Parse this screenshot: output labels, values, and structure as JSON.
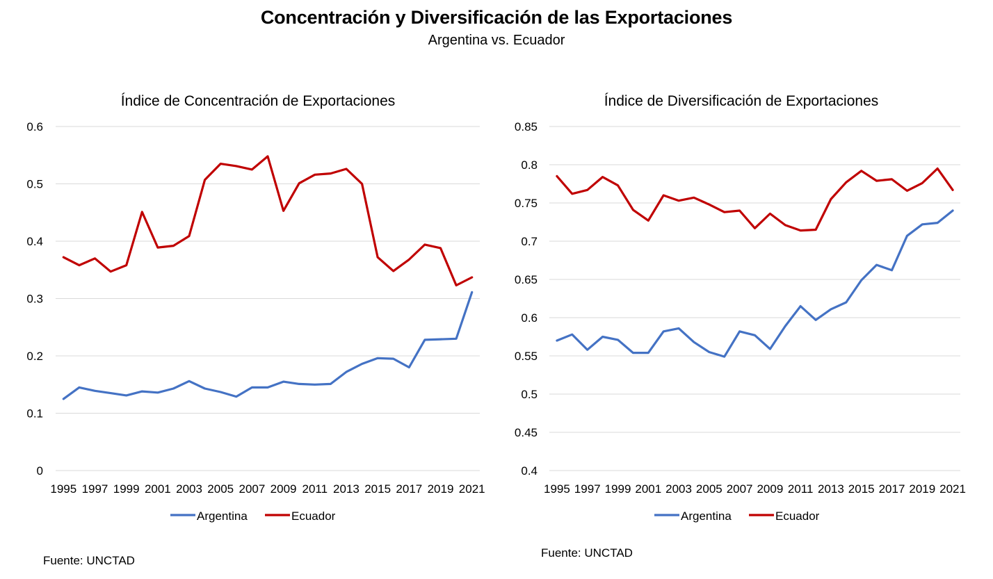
{
  "title": "Concentración y Diversificación de las Exportaciones",
  "subtitle": "Argentina vs. Ecuador",
  "colors": {
    "argentina": "#4472c4",
    "ecuador": "#c00000",
    "grid": "#d9d9d9"
  },
  "chart_data": [
    {
      "type": "line",
      "title": "Índice de Concentración de Exportaciones",
      "xlabel": "",
      "ylabel": "",
      "x": [
        1995,
        1996,
        1997,
        1998,
        1999,
        2000,
        2001,
        2002,
        2003,
        2004,
        2005,
        2006,
        2007,
        2008,
        2009,
        2010,
        2011,
        2012,
        2013,
        2014,
        2015,
        2016,
        2017,
        2018,
        2019,
        2020,
        2021
      ],
      "xtick_labels": [
        "1995",
        "1997",
        "1999",
        "2001",
        "2003",
        "2005",
        "2007",
        "2009",
        "2011",
        "2013",
        "2015",
        "2017",
        "2019",
        "2021"
      ],
      "ylim": [
        0,
        0.6
      ],
      "yticks": [
        0,
        0.1,
        0.2,
        0.3,
        0.4,
        0.5,
        0.6
      ],
      "ytick_labels": [
        "0",
        "0.1",
        "0.2",
        "0.3",
        "0.4",
        "0.5",
        "0.6"
      ],
      "grid": true,
      "legend_position": "bottom",
      "series": [
        {
          "name": "Argentina",
          "color": "#4472c4",
          "values": [
            0.125,
            0.145,
            0.139,
            0.135,
            0.131,
            0.138,
            0.136,
            0.143,
            0.156,
            0.143,
            0.137,
            0.129,
            0.145,
            0.145,
            0.155,
            0.151,
            0.15,
            0.151,
            0.172,
            0.186,
            0.196,
            0.195,
            0.18,
            0.228,
            0.229,
            0.23,
            0.311
          ]
        },
        {
          "name": "Ecuador",
          "color": "#c00000",
          "values": [
            0.372,
            0.358,
            0.37,
            0.347,
            0.358,
            0.451,
            0.389,
            0.392,
            0.409,
            0.507,
            0.535,
            0.531,
            0.525,
            0.548,
            0.453,
            0.501,
            0.516,
            0.518,
            0.526,
            0.5,
            0.372,
            0.348,
            0.368,
            0.394,
            0.388,
            0.323,
            0.337
          ]
        }
      ],
      "source": "Fuente: UNCTAD"
    },
    {
      "type": "line",
      "title": "Índice de Diversificación de Exportaciones",
      "xlabel": "",
      "ylabel": "",
      "x": [
        1995,
        1996,
        1997,
        1998,
        1999,
        2000,
        2001,
        2002,
        2003,
        2004,
        2005,
        2006,
        2007,
        2008,
        2009,
        2010,
        2011,
        2012,
        2013,
        2014,
        2015,
        2016,
        2017,
        2018,
        2019,
        2020,
        2021
      ],
      "xtick_labels": [
        "1995",
        "1997",
        "1999",
        "2001",
        "2003",
        "2005",
        "2007",
        "2009",
        "2011",
        "2013",
        "2015",
        "2017",
        "2019",
        "2021"
      ],
      "ylim": [
        0.4,
        0.85
      ],
      "yticks": [
        0.4,
        0.45,
        0.5,
        0.55,
        0.6,
        0.65,
        0.7,
        0.75,
        0.8,
        0.85
      ],
      "ytick_labels": [
        "0.4",
        "0.45",
        "0.5",
        "0.55",
        "0.6",
        "0.65",
        "0.7",
        "0.75",
        "0.8",
        "0.85"
      ],
      "grid": true,
      "legend_position": "bottom",
      "series": [
        {
          "name": "Argentina",
          "color": "#4472c4",
          "values": [
            0.57,
            0.578,
            0.558,
            0.575,
            0.571,
            0.554,
            0.554,
            0.582,
            0.586,
            0.568,
            0.555,
            0.549,
            0.582,
            0.577,
            0.559,
            0.589,
            0.615,
            0.597,
            0.611,
            0.62,
            0.649,
            0.669,
            0.662,
            0.707,
            0.722,
            0.724,
            0.74
          ]
        },
        {
          "name": "Ecuador",
          "color": "#c00000",
          "values": [
            0.785,
            0.762,
            0.767,
            0.784,
            0.773,
            0.741,
            0.727,
            0.76,
            0.753,
            0.757,
            0.748,
            0.738,
            0.74,
            0.717,
            0.736,
            0.721,
            0.714,
            0.715,
            0.755,
            0.777,
            0.792,
            0.779,
            0.781,
            0.766,
            0.776,
            0.795,
            0.767
          ]
        }
      ],
      "source": "Fuente: UNCTAD"
    }
  ]
}
